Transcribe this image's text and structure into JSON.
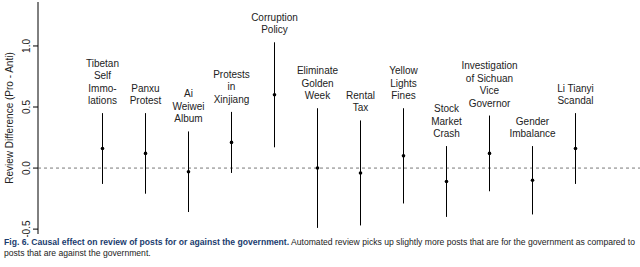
{
  "chart_data": {
    "type": "errorbar",
    "title": "Fig. 6. Causal effect on review of posts for or against the government.",
    "subtitle": "Automated review picks up slightly more posts that are for the government as compared to posts that are against the government.",
    "y_label": "Review Difference (Pro - Anti)",
    "categories": [
      "Tibetan\nSelf\nImmo-\nlations",
      "Panxu\nProtest",
      "Ai\nWeiwei\nAlbum",
      "Protests\nin\nXinjiang",
      "Corruption\nPolicy",
      "Eliminate\nGolden\nWeek",
      "Rental\nTax",
      "Yellow\nLights\nFines",
      "Stock\nMarket\nCrash",
      "Investigation\nof Sichuan\nVice\nGovernor",
      "Gender\nImbalance",
      "Li Tianyi\nScandal"
    ],
    "values": [
      0.16,
      0.12,
      -0.03,
      0.21,
      0.6,
      0.0,
      -0.04,
      0.1,
      -0.11,
      0.12,
      -0.1,
      0.16
    ],
    "errors": [
      0.29,
      0.33,
      0.33,
      0.25,
      0.43,
      0.49,
      0.43,
      0.39,
      0.29,
      0.31,
      0.28,
      0.29
    ],
    "reference_line": 0,
    "color": "#000000",
    "ylim": [
      -0.54,
      1.36
    ],
    "yticks": [
      {
        "value": -0.5,
        "label": "-0.5"
      },
      {
        "value": 0,
        "label": "0.0"
      },
      {
        "value": 0.5,
        "label": "0.5"
      },
      {
        "value": 1,
        "label": "1.0"
      }
    ],
    "grid": false
  }
}
